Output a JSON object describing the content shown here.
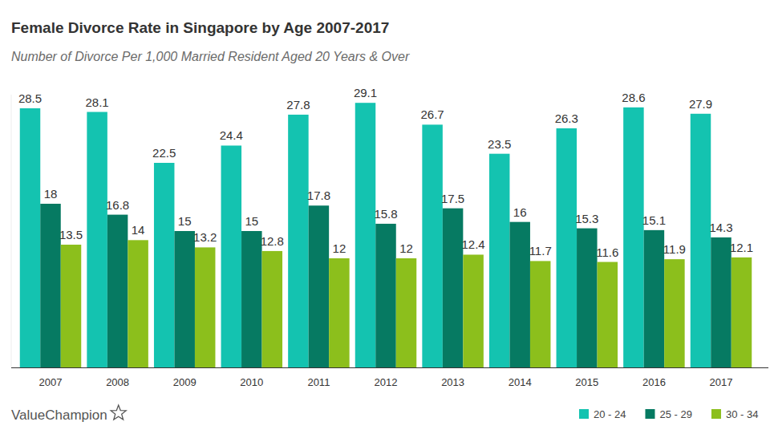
{
  "chart_data": {
    "type": "bar",
    "title": "Female Divorce Rate in Singapore by Age 2007-2017",
    "subtitle": "Number of Divorce Per 1,000 Married Resident Aged 20 Years & Over",
    "annotations": [
      "ValueChampion"
    ],
    "categories": [
      "2007",
      "2008",
      "2009",
      "2010",
      "2011",
      "2012",
      "2013",
      "2014",
      "2015",
      "2016",
      "2017"
    ],
    "series": [
      {
        "name": "20 - 24",
        "color": "#14c3b0",
        "values": [
          28.5,
          28.1,
          22.5,
          24.4,
          27.8,
          29.1,
          26.7,
          23.5,
          26.3,
          28.6,
          27.9
        ]
      },
      {
        "name": "25 - 29",
        "color": "#067a62",
        "values": [
          18,
          16.8,
          15,
          15,
          17.8,
          15.8,
          17.5,
          16,
          15.3,
          15.1,
          14.3
        ]
      },
      {
        "name": "30 - 34",
        "color": "#8cbf1c",
        "values": [
          13.5,
          14,
          13.2,
          12.8,
          12,
          12,
          12.4,
          11.7,
          11.6,
          11.9,
          12.1
        ]
      }
    ],
    "ylim": [
      0,
      30
    ],
    "grid": false,
    "legend": "bottom-right",
    "data_labels": true,
    "tick_labels": "x"
  }
}
